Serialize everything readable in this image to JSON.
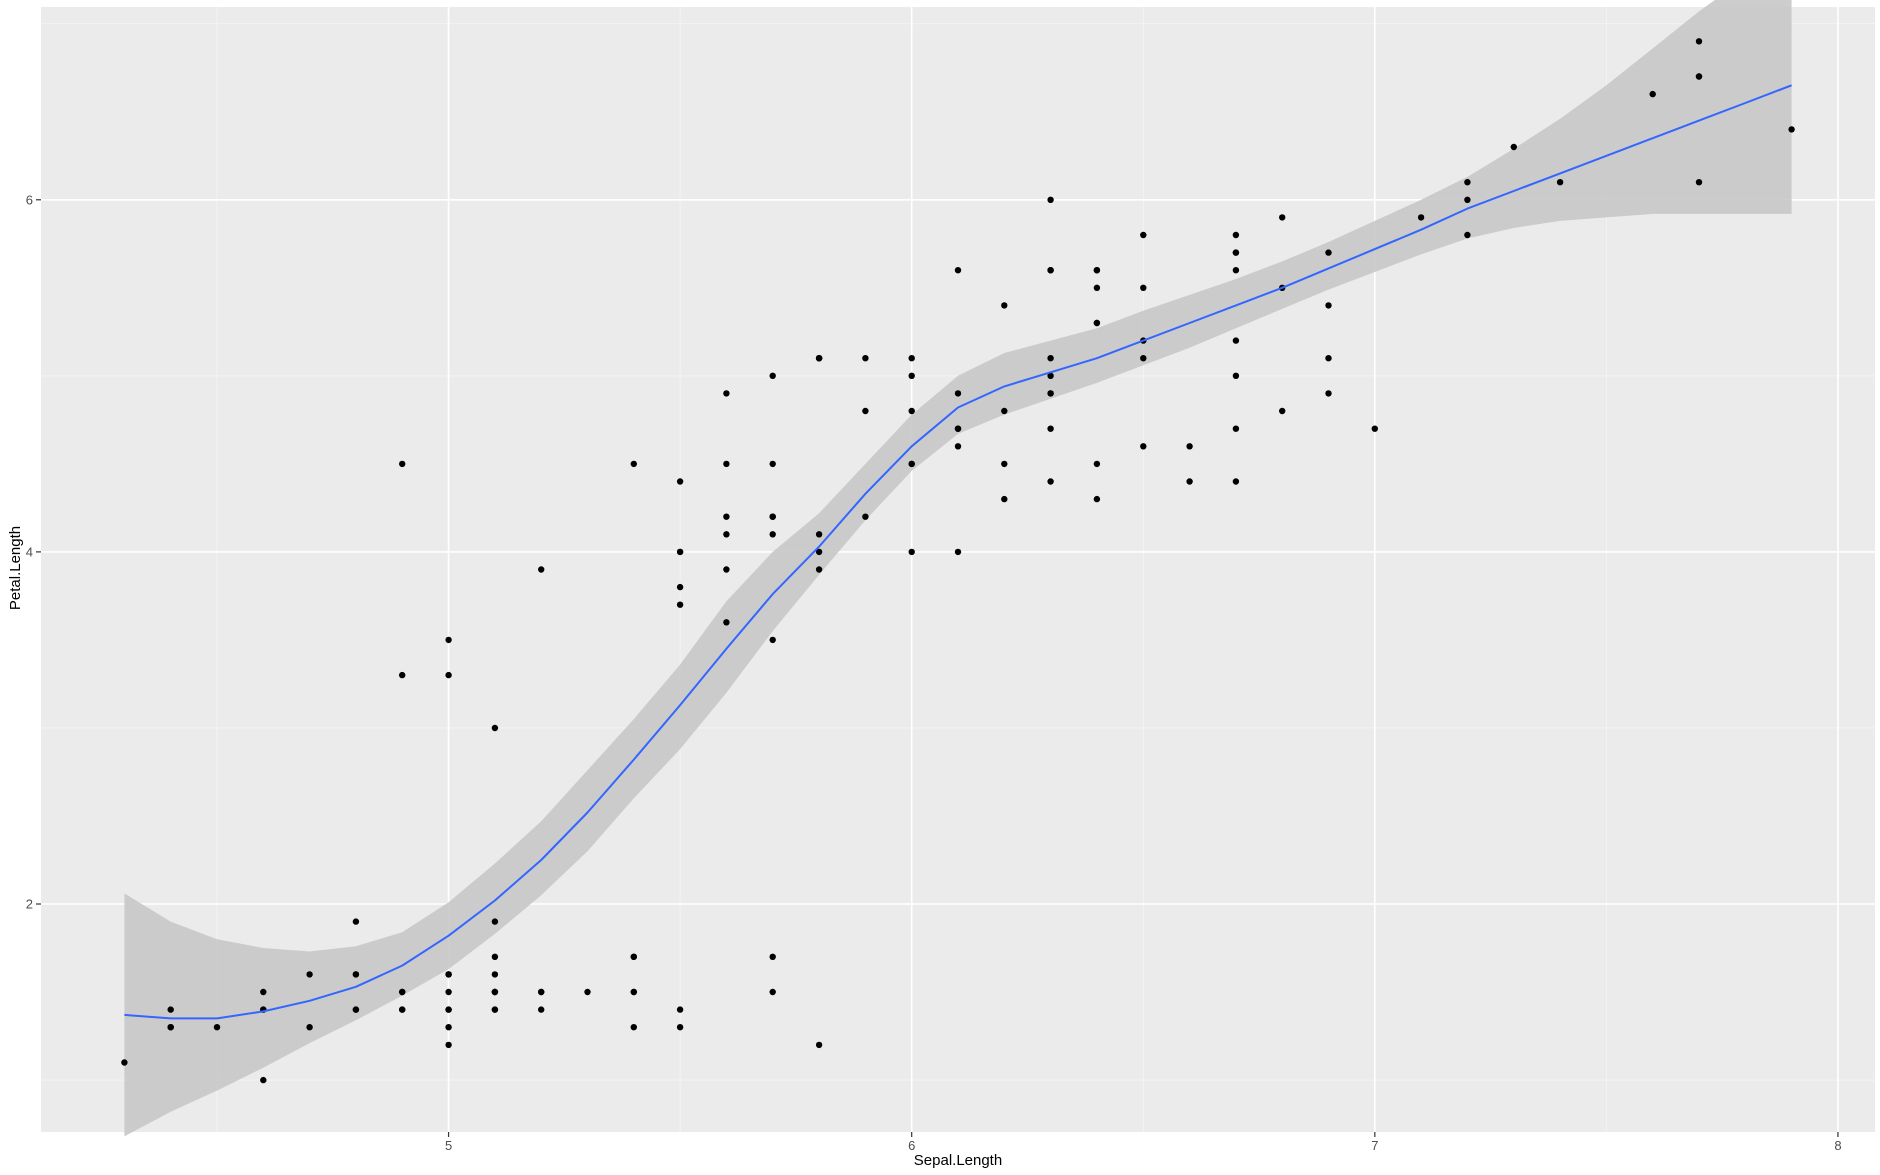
{
  "chart_data": {
    "type": "scatter",
    "xlabel": "Sepal.Length",
    "ylabel": "Petal.Length",
    "xlim": [
      4.12,
      8.08
    ],
    "ylim": [
      0.705,
      7.095
    ],
    "x_ticks": [
      5,
      6,
      7,
      8
    ],
    "x_tick_labels": [
      "5",
      "6",
      "7",
      "8"
    ],
    "y_ticks": [
      2,
      4,
      6
    ],
    "y_tick_labels": [
      "2",
      "4",
      "6"
    ],
    "x_minor_ticks": [
      4.5,
      5.5,
      6.5,
      7.5
    ],
    "y_minor_ticks": [
      1,
      3,
      5,
      7
    ],
    "grid": true,
    "legend": "none",
    "colors": {
      "panel_background": "#ebebeb",
      "grid_major": "#ffffff",
      "grid_minor": "#f5f5f5",
      "points": "#000000",
      "smooth_line": "#3366ff",
      "confidence_band": "#c8c8c8"
    },
    "points": [
      [
        5.1,
        1.4
      ],
      [
        4.9,
        1.4
      ],
      [
        4.7,
        1.3
      ],
      [
        4.6,
        1.5
      ],
      [
        5.0,
        1.4
      ],
      [
        5.4,
        1.7
      ],
      [
        4.6,
        1.4
      ],
      [
        5.0,
        1.5
      ],
      [
        4.4,
        1.4
      ],
      [
        4.9,
        1.5
      ],
      [
        5.4,
        1.5
      ],
      [
        4.8,
        1.6
      ],
      [
        4.8,
        1.4
      ],
      [
        4.3,
        1.1
      ],
      [
        5.8,
        1.2
      ],
      [
        5.7,
        1.5
      ],
      [
        5.4,
        1.3
      ],
      [
        5.1,
        1.4
      ],
      [
        5.7,
        1.7
      ],
      [
        5.1,
        1.5
      ],
      [
        5.4,
        1.7
      ],
      [
        5.1,
        1.5
      ],
      [
        4.6,
        1.0
      ],
      [
        5.1,
        1.7
      ],
      [
        4.8,
        1.9
      ],
      [
        5.0,
        1.6
      ],
      [
        5.0,
        1.6
      ],
      [
        5.2,
        1.5
      ],
      [
        5.2,
        1.4
      ],
      [
        4.7,
        1.6
      ],
      [
        4.8,
        1.6
      ],
      [
        5.4,
        1.5
      ],
      [
        5.2,
        1.5
      ],
      [
        5.5,
        1.4
      ],
      [
        4.9,
        1.5
      ],
      [
        5.0,
        1.2
      ],
      [
        5.5,
        1.3
      ],
      [
        4.9,
        1.4
      ],
      [
        4.4,
        1.3
      ],
      [
        5.1,
        1.5
      ],
      [
        5.0,
        1.3
      ],
      [
        4.5,
        1.3
      ],
      [
        4.4,
        1.3
      ],
      [
        5.0,
        1.6
      ],
      [
        5.1,
        1.9
      ],
      [
        4.8,
        1.4
      ],
      [
        5.1,
        1.6
      ],
      [
        4.6,
        1.4
      ],
      [
        5.3,
        1.5
      ],
      [
        5.0,
        1.4
      ],
      [
        7.0,
        4.7
      ],
      [
        6.4,
        4.5
      ],
      [
        6.9,
        4.9
      ],
      [
        5.5,
        4.0
      ],
      [
        6.5,
        4.6
      ],
      [
        5.7,
        4.5
      ],
      [
        6.3,
        4.7
      ],
      [
        4.9,
        3.3
      ],
      [
        6.6,
        4.6
      ],
      [
        5.2,
        3.9
      ],
      [
        5.0,
        3.5
      ],
      [
        5.9,
        4.2
      ],
      [
        6.0,
        4.0
      ],
      [
        6.1,
        4.7
      ],
      [
        5.6,
        3.6
      ],
      [
        6.7,
        4.4
      ],
      [
        5.6,
        4.5
      ],
      [
        5.8,
        4.1
      ],
      [
        6.2,
        4.5
      ],
      [
        5.6,
        3.9
      ],
      [
        5.9,
        4.8
      ],
      [
        6.1,
        4.0
      ],
      [
        6.3,
        4.9
      ],
      [
        6.1,
        4.7
      ],
      [
        6.4,
        4.3
      ],
      [
        6.6,
        4.4
      ],
      [
        6.8,
        4.8
      ],
      [
        6.7,
        5.0
      ],
      [
        6.0,
        4.5
      ],
      [
        5.7,
        3.5
      ],
      [
        5.5,
        3.8
      ],
      [
        5.5,
        3.7
      ],
      [
        5.8,
        3.9
      ],
      [
        6.0,
        5.1
      ],
      [
        5.4,
        4.5
      ],
      [
        6.0,
        4.5
      ],
      [
        6.7,
        4.7
      ],
      [
        6.3,
        4.4
      ],
      [
        5.6,
        4.1
      ],
      [
        5.5,
        4.0
      ],
      [
        5.5,
        4.4
      ],
      [
        6.1,
        4.6
      ],
      [
        5.8,
        4.0
      ],
      [
        5.0,
        3.3
      ],
      [
        5.6,
        4.2
      ],
      [
        5.7,
        4.2
      ],
      [
        5.7,
        4.2
      ],
      [
        6.2,
        4.3
      ],
      [
        5.1,
        3.0
      ],
      [
        5.7,
        4.1
      ],
      [
        6.3,
        6.0
      ],
      [
        5.8,
        5.1
      ],
      [
        7.1,
        5.9
      ],
      [
        6.3,
        5.6
      ],
      [
        6.5,
        5.8
      ],
      [
        7.6,
        6.6
      ],
      [
        4.9,
        4.5
      ],
      [
        7.3,
        6.3
      ],
      [
        6.7,
        5.8
      ],
      [
        7.2,
        6.1
      ],
      [
        6.5,
        5.1
      ],
      [
        6.4,
        5.3
      ],
      [
        6.8,
        5.5
      ],
      [
        5.7,
        5.0
      ],
      [
        5.8,
        5.1
      ],
      [
        6.4,
        5.3
      ],
      [
        6.5,
        5.5
      ],
      [
        7.7,
        6.7
      ],
      [
        7.7,
        6.9
      ],
      [
        6.0,
        5.0
      ],
      [
        6.9,
        5.7
      ],
      [
        5.6,
        4.9
      ],
      [
        7.7,
        6.7
      ],
      [
        6.3,
        4.9
      ],
      [
        6.7,
        5.7
      ],
      [
        7.2,
        6.0
      ],
      [
        6.2,
        4.8
      ],
      [
        6.1,
        4.9
      ],
      [
        6.4,
        5.6
      ],
      [
        7.2,
        5.8
      ],
      [
        7.4,
        6.1
      ],
      [
        7.9,
        6.4
      ],
      [
        6.4,
        5.6
      ],
      [
        6.3,
        5.1
      ],
      [
        6.1,
        5.6
      ],
      [
        7.7,
        6.1
      ],
      [
        6.3,
        5.6
      ],
      [
        6.4,
        5.5
      ],
      [
        6.0,
        4.8
      ],
      [
        6.9,
        5.4
      ],
      [
        6.7,
        5.6
      ],
      [
        6.9,
        5.1
      ],
      [
        5.8,
        5.1
      ],
      [
        6.8,
        5.9
      ],
      [
        6.7,
        5.7
      ],
      [
        6.7,
        5.2
      ],
      [
        6.3,
        5.0
      ],
      [
        6.5,
        5.2
      ],
      [
        6.2,
        5.4
      ],
      [
        5.9,
        5.1
      ]
    ],
    "smooth": {
      "method": "loess",
      "x": [
        4.3,
        4.4,
        4.5,
        4.6,
        4.7,
        4.8,
        4.9,
        5.0,
        5.1,
        5.2,
        5.3,
        5.4,
        5.5,
        5.6,
        5.7,
        5.8,
        5.9,
        6.0,
        6.1,
        6.2,
        6.3,
        6.4,
        6.5,
        6.6,
        6.7,
        6.8,
        6.9,
        7.0,
        7.1,
        7.2,
        7.3,
        7.4,
        7.5,
        7.6,
        7.7,
        7.8,
        7.9
      ],
      "y": [
        1.37,
        1.35,
        1.35,
        1.39,
        1.45,
        1.53,
        1.65,
        1.82,
        2.02,
        2.25,
        2.52,
        2.82,
        3.13,
        3.45,
        3.76,
        4.03,
        4.33,
        4.6,
        4.82,
        4.94,
        5.02,
        5.1,
        5.2,
        5.3,
        5.4,
        5.5,
        5.61,
        5.72,
        5.83,
        5.95,
        6.05,
        6.15,
        6.25,
        6.35,
        6.45,
        6.55,
        6.65
      ],
      "lower": [
        0.68,
        0.82,
        0.94,
        1.07,
        1.21,
        1.34,
        1.48,
        1.63,
        1.83,
        2.05,
        2.3,
        2.6,
        2.88,
        3.2,
        3.55,
        3.87,
        4.18,
        4.46,
        4.67,
        4.78,
        4.87,
        4.96,
        5.06,
        5.16,
        5.27,
        5.38,
        5.49,
        5.59,
        5.69,
        5.78,
        5.84,
        5.88,
        5.9,
        5.92,
        5.92,
        5.92,
        5.92
      ],
      "upper": [
        2.06,
        1.9,
        1.8,
        1.75,
        1.73,
        1.76,
        1.84,
        2.01,
        2.23,
        2.47,
        2.76,
        3.05,
        3.36,
        3.72,
        4.0,
        4.22,
        4.5,
        4.78,
        5.0,
        5.13,
        5.2,
        5.27,
        5.37,
        5.46,
        5.55,
        5.65,
        5.76,
        5.88,
        6.0,
        6.13,
        6.29,
        6.46,
        6.65,
        6.86,
        7.07,
        7.26,
        7.4
      ]
    }
  }
}
